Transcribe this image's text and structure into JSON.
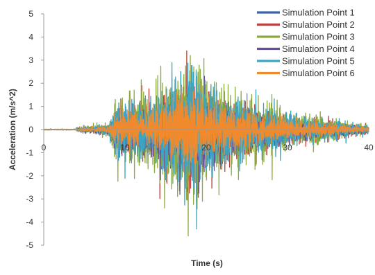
{
  "chart_data": {
    "type": "line",
    "xlabel": "Time (s)",
    "ylabel": "Acceleration (m/s^2)",
    "xlim": [
      0,
      40
    ],
    "ylim": [
      -5,
      5
    ],
    "xticks": [
      0,
      10,
      20,
      30,
      40
    ],
    "yticks": [
      5,
      4,
      3,
      2,
      1,
      0,
      -1,
      -2,
      -3,
      -4,
      -5
    ],
    "grid": false,
    "legend_position": "top-right",
    "series": [
      {
        "name": "Simulation Point 1",
        "color": "#3b64a8",
        "peak": 2.5,
        "trough": -3.0
      },
      {
        "name": "Simulation Point 2",
        "color": "#b9413d",
        "peak": 3.4,
        "trough": -3.2
      },
      {
        "name": "Simulation Point 3",
        "color": "#8bab3c",
        "peak": 3.2,
        "trough": -4.6
      },
      {
        "name": "Simulation Point 4",
        "color": "#6b4c96",
        "peak": 2.3,
        "trough": -2.8
      },
      {
        "name": "Simulation Point 5",
        "color": "#3ea3c2",
        "peak": 2.9,
        "trough": -4.3
      },
      {
        "name": "Simulation Point 6",
        "color": "#f08a2c",
        "peak": 2.0,
        "trough": -2.3
      }
    ]
  }
}
